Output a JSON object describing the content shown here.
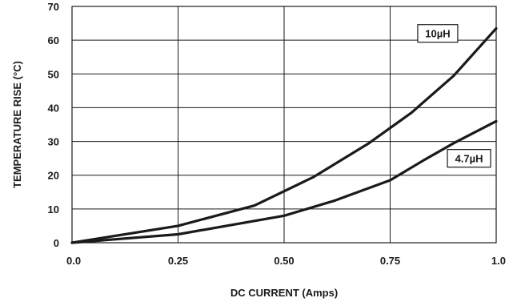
{
  "chart_data": {
    "type": "line",
    "title": "",
    "xlabel": "DC CURRENT (Amps)",
    "ylabel": "TEMPERATURE RISE (°C)",
    "xlim": [
      0,
      1
    ],
    "ylim": [
      0,
      70
    ],
    "x_ticks": [
      0,
      0.25,
      0.5,
      0.75,
      1
    ],
    "x_tick_labels": [
      "0.0",
      "0.25",
      "0.50",
      "0.75",
      "1.0"
    ],
    "y_ticks": [
      0,
      10,
      20,
      30,
      40,
      50,
      60,
      70
    ],
    "y_tick_labels": [
      "0",
      "10",
      "20",
      "30",
      "40",
      "50",
      "60",
      "70"
    ],
    "grid": true,
    "legend": "none",
    "series": [
      {
        "name": "10µH",
        "color": "#1a1a1a",
        "x": [
          0,
          0.25,
          0.43,
          0.57,
          0.7,
          0.8,
          0.9,
          0.95,
          1.0
        ],
        "y": [
          0,
          5,
          11,
          19.5,
          29.5,
          38.5,
          49.5,
          56.5,
          63.5
        ]
      },
      {
        "name": "4.7µH",
        "color": "#1a1a1a",
        "x": [
          0,
          0.25,
          0.5,
          0.62,
          0.75,
          0.83,
          0.9,
          1.0
        ],
        "y": [
          0,
          2.5,
          8,
          12.5,
          18.5,
          24.5,
          29.5,
          36
        ]
      }
    ]
  }
}
